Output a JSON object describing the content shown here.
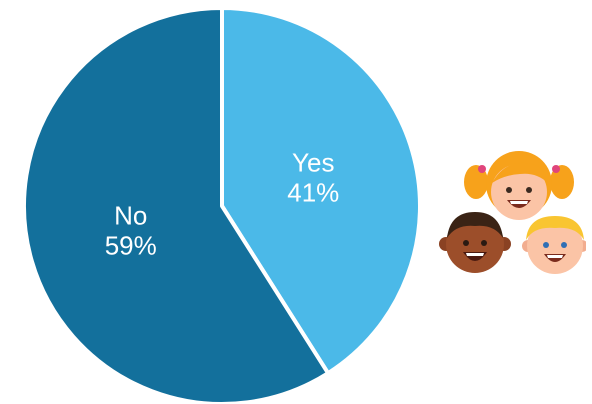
{
  "chart_data": {
    "type": "pie",
    "slices": [
      {
        "label": "Yes",
        "value": 41,
        "value_label": "41%",
        "color": "#4bb9e8"
      },
      {
        "label": "No",
        "value": 59,
        "value_label": "59%",
        "color": "#13709c"
      }
    ],
    "start": "top",
    "direction": "clockwise",
    "slice_separator_color": "#ffffff"
  },
  "illustration": {
    "icon": "children-faces-icon",
    "hair_colors": [
      "#f7a21b",
      "#3a2315",
      "#f9c531"
    ],
    "skin_colors": [
      "#fbc4a6",
      "#9c4e2a",
      "#fbc4a6"
    ]
  }
}
